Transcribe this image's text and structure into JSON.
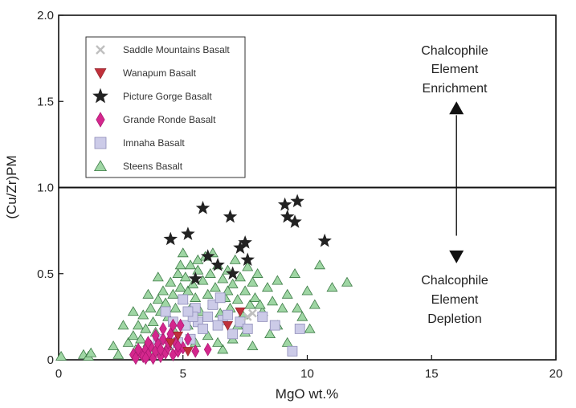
{
  "chart_data": {
    "type": "scatter",
    "title": "",
    "xlabel": "MgO wt.%",
    "ylabel": "(Cu/Zr)PM",
    "xlim": [
      0,
      20
    ],
    "ylim": [
      0,
      2.0
    ],
    "x_ticks": [
      0,
      5,
      10,
      15,
      20
    ],
    "x_tick_labels": [
      "0",
      "5",
      "10",
      "15",
      "20"
    ],
    "y_ticks": [
      0,
      0.5,
      1.0,
      1.5,
      2.0
    ],
    "y_tick_labels": [
      "0",
      "0.5",
      "1.0",
      "1.5",
      "2.0"
    ],
    "grid": false,
    "legend_position": "top-left",
    "reference_line": {
      "y": 1.0
    },
    "annotations": {
      "upper": [
        "Chalcophile",
        "Element",
        "Enrichment"
      ],
      "lower": [
        "Chalcophile",
        "Element",
        "Depletion"
      ],
      "arrow_x": 16
    },
    "colors": {
      "saddle": "#bfbfbf",
      "wanapum": "#c0303a",
      "picture": "#222222",
      "grande": "#d4278d",
      "imnaha": "#cccbe8",
      "steens": "#9fd6a4"
    },
    "series": [
      {
        "name": "Saddle Mountains Basalt",
        "marker": "x",
        "points": [
          [
            7.8,
            0.27
          ],
          [
            7.6,
            0.25
          ]
        ]
      },
      {
        "name": "Wanapum Basalt",
        "marker": "triangle-down",
        "points": [
          [
            7.3,
            0.28
          ],
          [
            4.5,
            0.1
          ],
          [
            5.2,
            0.05
          ],
          [
            6.8,
            0.2
          ],
          [
            4.8,
            0.14
          ]
        ]
      },
      {
        "name": "Picture Gorge Basalt",
        "marker": "star",
        "points": [
          [
            4.5,
            0.7
          ],
          [
            5.2,
            0.73
          ],
          [
            5.8,
            0.88
          ],
          [
            6.0,
            0.6
          ],
          [
            6.4,
            0.55
          ],
          [
            6.9,
            0.83
          ],
          [
            7.3,
            0.65
          ],
          [
            7.5,
            0.68
          ],
          [
            7.6,
            0.58
          ],
          [
            9.1,
            0.9
          ],
          [
            9.2,
            0.83
          ],
          [
            9.5,
            0.8
          ],
          [
            9.6,
            0.92
          ],
          [
            10.7,
            0.69
          ],
          [
            7.0,
            0.5
          ],
          [
            5.5,
            0.47
          ]
        ]
      },
      {
        "name": "Grande Ronde Basalt",
        "marker": "diamond",
        "points": [
          [
            3.0,
            0.03
          ],
          [
            3.1,
            0.01
          ],
          [
            3.3,
            0.04
          ],
          [
            3.4,
            0.02
          ],
          [
            3.5,
            0.06
          ],
          [
            3.6,
            0.03
          ],
          [
            3.7,
            0.08
          ],
          [
            3.8,
            0.01
          ],
          [
            3.9,
            0.05
          ],
          [
            4.0,
            0.09
          ],
          [
            4.1,
            0.02
          ],
          [
            4.2,
            0.12
          ],
          [
            4.3,
            0.04
          ],
          [
            4.4,
            0.07
          ],
          [
            4.5,
            0.15
          ],
          [
            4.6,
            0.03
          ],
          [
            4.7,
            0.1
          ],
          [
            4.8,
            0.05
          ],
          [
            4.9,
            0.2
          ],
          [
            5.0,
            0.07
          ],
          [
            3.2,
            0.06
          ],
          [
            3.6,
            0.1
          ],
          [
            4.2,
            0.18
          ],
          [
            4.6,
            0.2
          ],
          [
            5.2,
            0.12
          ],
          [
            3.9,
            0.14
          ],
          [
            4.1,
            0.06
          ],
          [
            4.4,
            0.1
          ],
          [
            3.5,
            0.01
          ],
          [
            4.8,
            0.08
          ],
          [
            5.5,
            0.05
          ],
          [
            6.0,
            0.06
          ]
        ]
      },
      {
        "name": "Imnaha Basalt",
        "marker": "square",
        "points": [
          [
            4.3,
            0.28
          ],
          [
            4.6,
            0.22
          ],
          [
            5.0,
            0.35
          ],
          [
            5.1,
            0.2
          ],
          [
            5.3,
            0.12
          ],
          [
            5.5,
            0.3
          ],
          [
            5.6,
            0.22
          ],
          [
            5.8,
            0.18
          ],
          [
            6.0,
            0.25
          ],
          [
            6.2,
            0.32
          ],
          [
            6.5,
            0.36
          ],
          [
            6.6,
            0.23
          ],
          [
            6.8,
            0.26
          ],
          [
            7.0,
            0.15
          ],
          [
            7.3,
            0.22
          ],
          [
            7.6,
            0.18
          ],
          [
            8.2,
            0.25
          ],
          [
            8.7,
            0.2
          ],
          [
            9.4,
            0.05
          ],
          [
            9.7,
            0.18
          ],
          [
            4.0,
            0.12
          ],
          [
            4.8,
            0.1
          ],
          [
            5.4,
            0.25
          ],
          [
            6.4,
            0.2
          ],
          [
            5.2,
            0.28
          ]
        ]
      },
      {
        "name": "Steens Basalt",
        "marker": "triangle",
        "points": [
          [
            0.1,
            0.02
          ],
          [
            1.0,
            0.03
          ],
          [
            1.2,
            0.02
          ],
          [
            1.3,
            0.04
          ],
          [
            2.2,
            0.08
          ],
          [
            2.4,
            0.03
          ],
          [
            2.8,
            0.1
          ],
          [
            3.0,
            0.14
          ],
          [
            3.1,
            0.06
          ],
          [
            3.2,
            0.2
          ],
          [
            3.3,
            0.12
          ],
          [
            3.4,
            0.26
          ],
          [
            3.5,
            0.18
          ],
          [
            3.6,
            0.1
          ],
          [
            3.7,
            0.3
          ],
          [
            3.8,
            0.22
          ],
          [
            3.9,
            0.16
          ],
          [
            4.0,
            0.35
          ],
          [
            4.1,
            0.28
          ],
          [
            4.2,
            0.4
          ],
          [
            4.3,
            0.33
          ],
          [
            4.4,
            0.25
          ],
          [
            4.5,
            0.45
          ],
          [
            4.6,
            0.38
          ],
          [
            4.7,
            0.3
          ],
          [
            4.8,
            0.5
          ],
          [
            4.9,
            0.42
          ],
          [
            5.0,
            0.35
          ],
          [
            5.1,
            0.48
          ],
          [
            5.2,
            0.4
          ],
          [
            5.3,
            0.55
          ],
          [
            5.4,
            0.44
          ],
          [
            5.5,
            0.36
          ],
          [
            5.6,
            0.52
          ],
          [
            5.7,
            0.28
          ],
          [
            5.8,
            0.46
          ],
          [
            5.9,
            0.6
          ],
          [
            6.0,
            0.38
          ],
          [
            6.1,
            0.5
          ],
          [
            6.2,
            0.32
          ],
          [
            6.3,
            0.42
          ],
          [
            6.4,
            0.55
          ],
          [
            6.5,
            0.27
          ],
          [
            6.6,
            0.47
          ],
          [
            6.7,
            0.36
          ],
          [
            6.8,
            0.52
          ],
          [
            6.9,
            0.3
          ],
          [
            7.0,
            0.44
          ],
          [
            7.1,
            0.58
          ],
          [
            7.2,
            0.35
          ],
          [
            7.3,
            0.48
          ],
          [
            7.4,
            0.26
          ],
          [
            7.5,
            0.4
          ],
          [
            7.6,
            0.54
          ],
          [
            7.7,
            0.32
          ],
          [
            7.8,
            0.45
          ],
          [
            7.9,
            0.36
          ],
          [
            8.0,
            0.5
          ],
          [
            8.2,
            0.28
          ],
          [
            8.4,
            0.42
          ],
          [
            8.6,
            0.34
          ],
          [
            8.8,
            0.46
          ],
          [
            9.0,
            0.3
          ],
          [
            9.2,
            0.38
          ],
          [
            9.5,
            0.5
          ],
          [
            9.8,
            0.25
          ],
          [
            10.0,
            0.4
          ],
          [
            10.3,
            0.32
          ],
          [
            10.5,
            0.55
          ],
          [
            11.0,
            0.42
          ],
          [
            11.6,
            0.45
          ],
          [
            5.6,
            0.58
          ],
          [
            6.2,
            0.62
          ],
          [
            4.9,
            0.55
          ],
          [
            4.0,
            0.48
          ],
          [
            3.6,
            0.38
          ],
          [
            3.0,
            0.28
          ],
          [
            2.6,
            0.2
          ],
          [
            5.2,
            0.2
          ],
          [
            6.0,
            0.14
          ],
          [
            7.0,
            0.12
          ],
          [
            7.8,
            0.08
          ],
          [
            5.5,
            0.1
          ],
          [
            6.6,
            0.06
          ],
          [
            8.5,
            0.15
          ],
          [
            9.2,
            0.1
          ],
          [
            4.4,
            0.08
          ],
          [
            3.8,
            0.05
          ],
          [
            6.8,
            0.4
          ],
          [
            7.2,
            0.2
          ],
          [
            8.1,
            0.32
          ],
          [
            5.0,
            0.62
          ],
          [
            5.3,
            0.3
          ],
          [
            4.6,
            0.18
          ],
          [
            6.4,
            0.1
          ],
          [
            7.5,
            0.16
          ],
          [
            8.8,
            0.2
          ],
          [
            9.6,
            0.3
          ],
          [
            10.1,
            0.18
          ]
        ]
      }
    ]
  }
}
